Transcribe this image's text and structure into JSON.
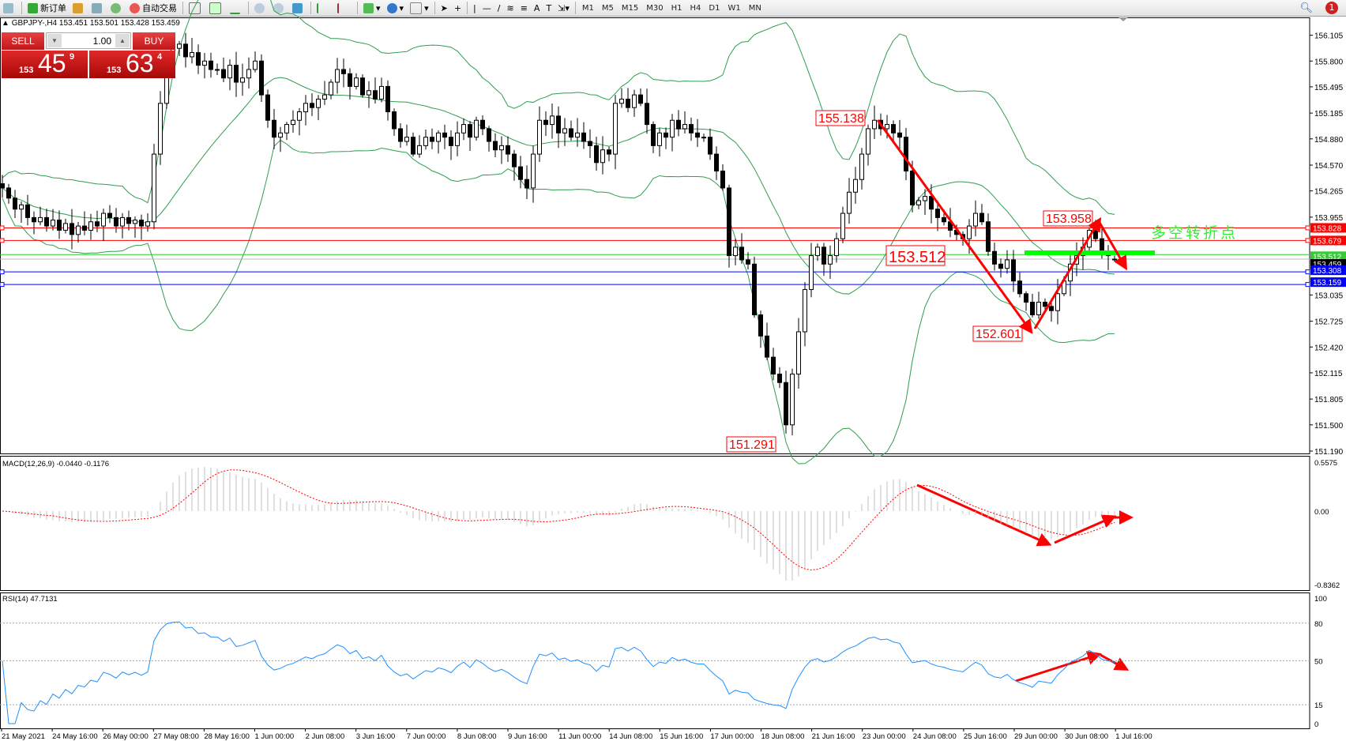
{
  "toolbar": {
    "new_order_label": "新订单",
    "auto_trading_label": "自动交易",
    "timeframes": [
      "M1",
      "M5",
      "M15",
      "M30",
      "H1",
      "H4",
      "D1",
      "W1",
      "MN"
    ],
    "notification_count": "1"
  },
  "chart_header": "GBPJPY-,H4  153.451 153.501 153.428 153.459",
  "one_click": {
    "sell_label": "SELL",
    "buy_label": "BUY",
    "lot": "1.00",
    "sell_prefix": "153",
    "sell_big": "45",
    "sell_pip": "9",
    "buy_prefix": "153",
    "buy_big": "63",
    "buy_pip": "4"
  },
  "chart_data": {
    "type": "candlestick",
    "symbol": "GBPJPY-",
    "timeframe": "H4",
    "ylim": [
      151.19,
      156.25
    ],
    "price_ticks": [
      "156.105",
      "155.800",
      "155.495",
      "155.185",
      "154.880",
      "154.570",
      "154.265",
      "153.955",
      "153.035",
      "152.725",
      "152.420",
      "152.115",
      "151.805",
      "151.500",
      "151.190"
    ],
    "time_labels": [
      "21 May 2021",
      "24 May 16:00",
      "26 May 00:00",
      "27 May 08:00",
      "28 May 16:00",
      "1 Jun 00:00",
      "2 Jun 08:00",
      "3 Jun 16:00",
      "7 Jun 00:00",
      "8 Jun 08:00",
      "9 Jun 16:00",
      "11 Jun 00:00",
      "14 Jun 08:00",
      "15 Jun 16:00",
      "17 Jun 00:00",
      "18 Jun 08:00",
      "21 Jun 16:00",
      "23 Jun 00:00",
      "24 Jun 08:00",
      "25 Jun 16:00",
      "29 Jun 00:00",
      "30 Jun 08:00",
      "1 Jul 16:00"
    ],
    "closes": [
      154.3,
      154.18,
      154.05,
      154.1,
      153.95,
      153.9,
      153.95,
      153.85,
      153.92,
      153.8,
      153.88,
      153.75,
      153.85,
      153.8,
      153.9,
      153.85,
      154.0,
      153.95,
      153.85,
      153.95,
      153.88,
      153.92,
      153.85,
      153.9,
      154.7,
      155.3,
      155.8,
      155.95,
      156.0,
      155.85,
      155.9,
      155.75,
      155.8,
      155.7,
      155.7,
      155.6,
      155.75,
      155.55,
      155.6,
      155.7,
      155.8,
      155.4,
      155.1,
      154.9,
      154.95,
      155.05,
      155.1,
      155.2,
      155.3,
      155.25,
      155.35,
      155.4,
      155.55,
      155.7,
      155.65,
      155.5,
      155.6,
      155.4,
      155.45,
      155.35,
      155.5,
      155.2,
      155.0,
      154.85,
      154.9,
      154.7,
      154.8,
      154.9,
      154.85,
      154.95,
      154.9,
      154.8,
      154.95,
      155.05,
      154.9,
      155.1,
      155.0,
      154.85,
      154.75,
      154.8,
      154.7,
      154.55,
      154.4,
      154.3,
      154.7,
      155.1,
      155.05,
      155.15,
      154.95,
      155.0,
      154.9,
      154.95,
      154.85,
      154.8,
      154.6,
      154.75,
      154.7,
      155.3,
      155.35,
      155.25,
      155.4,
      155.3,
      155.05,
      154.8,
      154.95,
      154.9,
      155.1,
      155.0,
      155.05,
      154.95,
      154.9,
      154.9,
      154.7,
      154.5,
      154.3,
      153.5,
      153.6,
      153.45,
      153.4,
      152.8,
      152.55,
      152.3,
      152.1,
      152.0,
      151.5,
      152.1,
      152.6,
      153.1,
      153.5,
      153.6,
      153.4,
      153.5,
      153.7,
      154.0,
      154.25,
      154.4,
      154.7,
      155.0,
      155.1,
      155.0,
      155.05,
      154.95,
      154.9,
      154.5,
      154.1,
      154.15,
      154.2,
      154.05,
      153.95,
      153.9,
      153.8,
      153.75,
      153.7,
      153.85,
      154.0,
      153.9,
      153.55,
      153.4,
      153.35,
      153.45,
      153.2,
      153.05,
      152.95,
      152.8,
      152.95,
      152.9,
      152.85,
      153.05,
      153.2,
      153.4,
      153.5,
      153.6,
      153.8,
      153.7,
      153.55,
      153.5,
      153.459
    ],
    "last_bar": {
      "open": 153.451,
      "high": 153.501,
      "low": 153.428,
      "close": 153.459
    },
    "indicators": {
      "bollinger_color": "#2e9e4f",
      "macd_label": "MACD(12,26,9) -0.0440 -0.1176",
      "macd_ticks": [
        "0.5575",
        "0.00",
        "-0.8362"
      ],
      "rsi_label": "RSI(14) 47.7131",
      "rsi_ticks": [
        "100",
        "80",
        "50",
        "15",
        "0"
      ]
    },
    "hlines": [
      {
        "price": 153.828,
        "label": "153.828",
        "color": "#ff0000"
      },
      {
        "price": 153.679,
        "label": "153.679",
        "color": "#ff0000"
      },
      {
        "price": 153.512,
        "label": "153.512",
        "color": "#33cc33"
      },
      {
        "price": 153.459,
        "label": "153.459",
        "color": "#000000"
      },
      {
        "price": 153.308,
        "label": "153.308",
        "color": "#0000ff"
      },
      {
        "price": 153.159,
        "label": "153.159",
        "color": "#0000ff"
      }
    ],
    "annotations": {
      "high1": "155.138",
      "high2": "153.958",
      "mid": "153.512",
      "low2": "152.601",
      "low1": "151.291",
      "turning_point": "多空转折点"
    }
  }
}
